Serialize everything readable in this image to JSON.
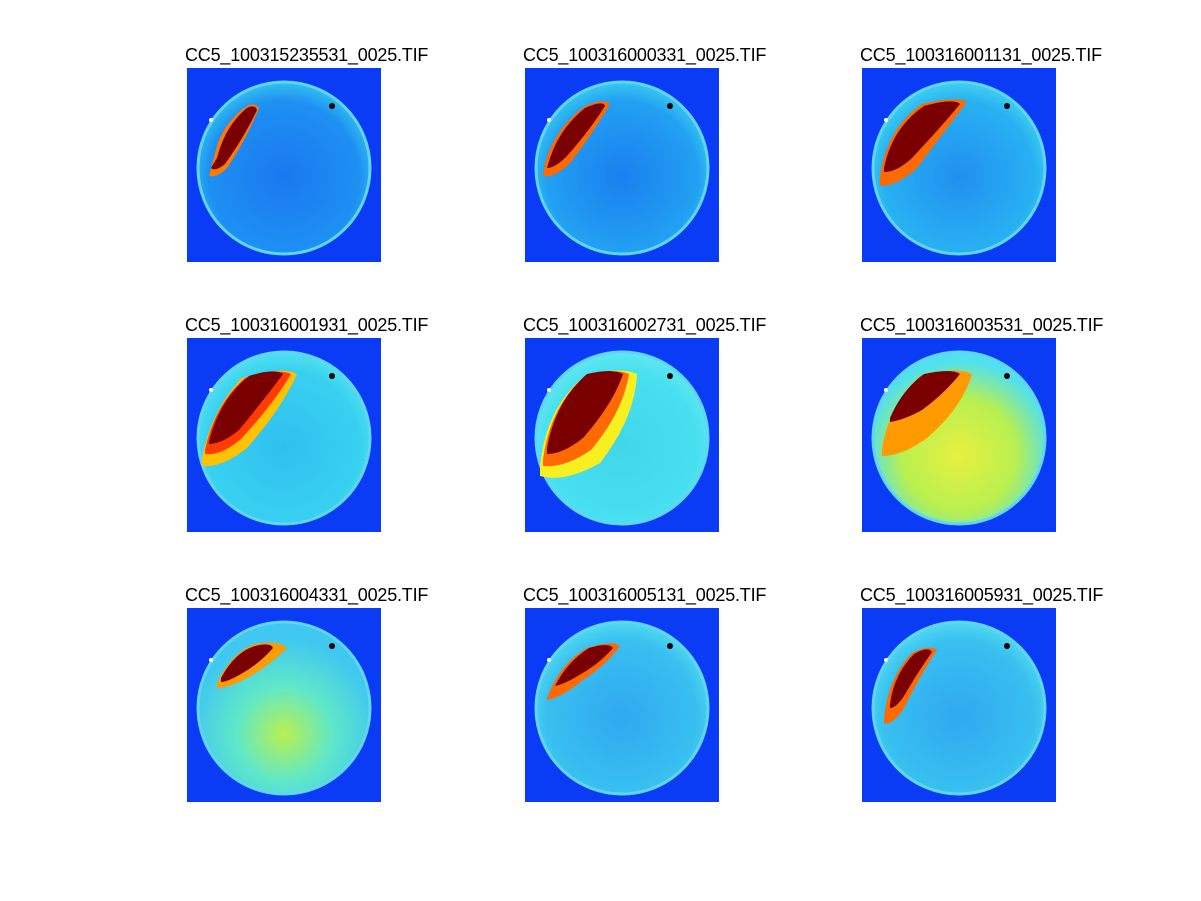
{
  "figure": {
    "panels": [
      {
        "title": "CC5_100315235531_0025.TIF",
        "colormap": "jet"
      },
      {
        "title": "CC5_100316000331_0025.TIF",
        "colormap": "jet"
      },
      {
        "title": "CC5_100316001131_0025.TIF",
        "colormap": "jet"
      },
      {
        "title": "CC5_100316001931_0025.TIF",
        "colormap": "jet"
      },
      {
        "title": "CC5_100316002731_0025.TIF",
        "colormap": "jet"
      },
      {
        "title": "CC5_100316003531_0025.TIF",
        "colormap": "jet"
      },
      {
        "title": "CC5_100316004331_0025.TIF",
        "colormap": "jet"
      },
      {
        "title": "CC5_100316005131_0025.TIF",
        "colormap": "jet"
      },
      {
        "title": "CC5_100316005931_0025.TIF",
        "colormap": "jet"
      }
    ],
    "colors": {
      "background": "#0a3cf5",
      "sky_low": "#1fa0f0",
      "sky_mid": "#30d8f0",
      "warm": "#f7f020",
      "hot": "#ff6a00",
      "saturated": "#7a0000"
    }
  }
}
